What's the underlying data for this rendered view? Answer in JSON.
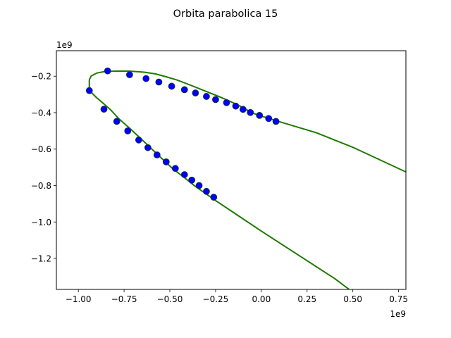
{
  "chart_data": {
    "type": "scatter",
    "title": "Orbita parabolica 15",
    "xlabel": "",
    "ylabel": "",
    "x_offset_label": "1e9",
    "y_offset_label": "1e9",
    "xlim": [
      -1.12,
      0.79
    ],
    "ylim": [
      -1.37,
      -0.06
    ],
    "x_ticks": [
      -1.0,
      -0.75,
      -0.5,
      -0.25,
      0.0,
      0.25,
      0.5,
      0.75
    ],
    "x_tick_labels": [
      "−1.00",
      "−0.75",
      "−0.50",
      "−0.25",
      "0.00",
      "0.25",
      "0.50",
      "0.75"
    ],
    "y_ticks": [
      -0.2,
      -0.4,
      -0.6,
      -0.8,
      -1.0,
      -1.2
    ],
    "y_tick_labels": [
      "−0.2",
      "−0.4",
      "−0.6",
      "−0.8",
      "−1.0",
      "−1.2"
    ],
    "grid": false,
    "colors": {
      "curve": "#1e7a00",
      "points": "#0000ff",
      "point_edge": "#1a3a1a"
    },
    "curve": {
      "x": [
        0.8,
        0.5,
        0.3,
        0.1,
        0.04,
        0.0,
        -0.04,
        -0.08,
        -0.12,
        -0.16,
        -0.2,
        -0.24,
        -0.28,
        -0.34,
        -0.4,
        -0.46,
        -0.52,
        -0.58,
        -0.64,
        -0.72,
        -0.8,
        -0.86,
        -0.9,
        -0.93,
        -0.94,
        -0.94,
        -0.9,
        -0.86,
        -0.82,
        -0.78,
        -0.72,
        -0.66,
        -0.6,
        -0.54,
        -0.48,
        -0.42,
        -0.36,
        -0.3,
        -0.24,
        -0.14,
        0.0,
        0.2,
        0.4,
        0.48
      ],
      "y": [
        -0.73,
        -0.59,
        -0.51,
        -0.45,
        -0.431,
        -0.419,
        -0.405,
        -0.384,
        -0.362,
        -0.343,
        -0.325,
        -0.308,
        -0.292,
        -0.268,
        -0.244,
        -0.221,
        -0.203,
        -0.187,
        -0.178,
        -0.172,
        -0.172,
        -0.175,
        -0.183,
        -0.199,
        -0.22,
        -0.278,
        -0.318,
        -0.352,
        -0.388,
        -0.432,
        -0.485,
        -0.541,
        -0.598,
        -0.655,
        -0.711,
        -0.757,
        -0.805,
        -0.847,
        -0.889,
        -0.956,
        -1.05,
        -1.18,
        -1.31,
        -1.37
      ]
    },
    "points": {
      "x": [
        -0.84,
        -0.72,
        -0.63,
        -0.56,
        -0.49,
        -0.42,
        -0.36,
        -0.3,
        -0.25,
        -0.19,
        -0.14,
        -0.1,
        -0.06,
        -0.01,
        0.04,
        0.08,
        -0.94,
        -0.86,
        -0.79,
        -0.73,
        -0.67,
        -0.62,
        -0.57,
        -0.52,
        -0.47,
        -0.42,
        -0.38,
        -0.34,
        -0.3,
        -0.26
      ],
      "y": [
        -0.171,
        -0.192,
        -0.213,
        -0.232,
        -0.255,
        -0.274,
        -0.292,
        -0.311,
        -0.328,
        -0.345,
        -0.364,
        -0.382,
        -0.399,
        -0.415,
        -0.432,
        -0.448,
        -0.279,
        -0.381,
        -0.448,
        -0.5,
        -0.55,
        -0.592,
        -0.632,
        -0.67,
        -0.706,
        -0.74,
        -0.77,
        -0.8,
        -0.832,
        -0.864
      ]
    }
  }
}
